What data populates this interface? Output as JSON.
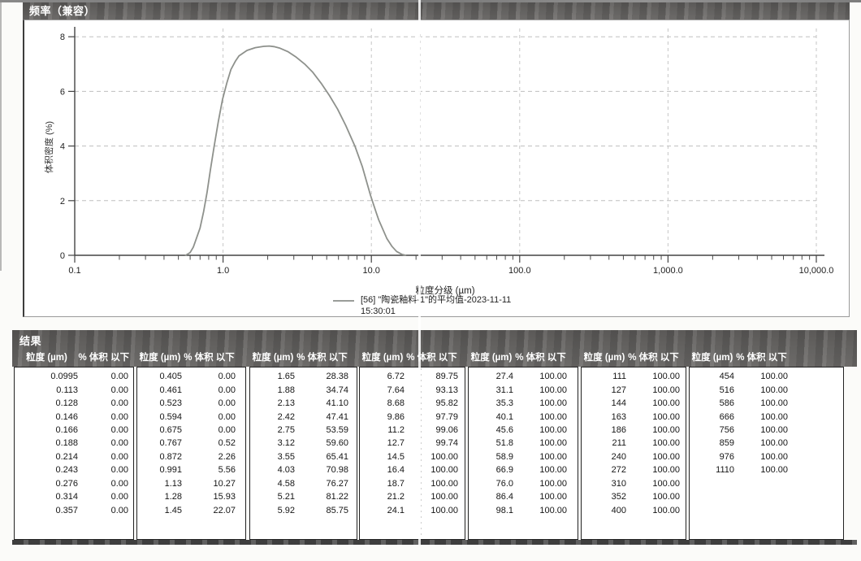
{
  "frequency_section": {
    "title": "频率（兼容）"
  },
  "chart_data": {
    "type": "line",
    "title": "频率（兼容）",
    "xlabel": "粒度分级 (µm)",
    "ylabel": "体积密度 (%)",
    "xscale": "log",
    "xlim": [
      0.1,
      10000
    ],
    "ylim": [
      0,
      8
    ],
    "xtick_values": [
      0.1,
      1,
      10,
      100,
      1000,
      10000
    ],
    "xtick_labels": [
      "0.1",
      "1.0",
      "10.0",
      "100.0",
      "1,000.0",
      "10,000.0"
    ],
    "ytick_values": [
      0,
      2,
      4,
      6,
      8
    ],
    "grid": true,
    "legend_position": "bottom",
    "series": [
      {
        "name": "[56] \"陶瓷釉料-1\"的平均值-2023-11-11",
        "time": "15:30:01",
        "color": "#8e918c",
        "points": [
          [
            0.56,
            0
          ],
          [
            0.6,
            0.1
          ],
          [
            0.63,
            0.3
          ],
          [
            0.66,
            0.6
          ],
          [
            0.7,
            1.0
          ],
          [
            0.74,
            1.6
          ],
          [
            0.78,
            2.3
          ],
          [
            0.82,
            3.1
          ],
          [
            0.872,
            4.0
          ],
          [
            0.93,
            4.9
          ],
          [
            0.991,
            5.7
          ],
          [
            1.06,
            6.3
          ],
          [
            1.13,
            6.8
          ],
          [
            1.21,
            7.1
          ],
          [
            1.28,
            7.3
          ],
          [
            1.45,
            7.5
          ],
          [
            1.65,
            7.6
          ],
          [
            1.88,
            7.65
          ],
          [
            2.05,
            7.66
          ],
          [
            2.2,
            7.64
          ],
          [
            2.42,
            7.58
          ],
          [
            2.75,
            7.45
          ],
          [
            3.12,
            7.25
          ],
          [
            3.55,
            7.0
          ],
          [
            4.03,
            6.7
          ],
          [
            4.58,
            6.3
          ],
          [
            5.21,
            5.85
          ],
          [
            5.92,
            5.35
          ],
          [
            6.72,
            4.75
          ],
          [
            7.74,
            4.0
          ],
          [
            8.68,
            3.25
          ],
          [
            9.86,
            2.2
          ],
          [
            10.8,
            1.55
          ],
          [
            11.2,
            1.3
          ],
          [
            12.7,
            0.62
          ],
          [
            13.8,
            0.32
          ],
          [
            14.8,
            0.14
          ],
          [
            16.0,
            0.04
          ],
          [
            17.0,
            0
          ]
        ]
      }
    ]
  },
  "results": {
    "title": "结果",
    "col_headers": {
      "size": "粒度 (µm)",
      "pct": "% 体积 以下"
    },
    "groups": [
      {
        "rows": [
          [
            "0.0995",
            "0.00"
          ],
          [
            "0.113",
            "0.00"
          ],
          [
            "0.128",
            "0.00"
          ],
          [
            "0.146",
            "0.00"
          ],
          [
            "0.166",
            "0.00"
          ],
          [
            "0.188",
            "0.00"
          ],
          [
            "0.214",
            "0.00"
          ],
          [
            "0.243",
            "0.00"
          ],
          [
            "0.276",
            "0.00"
          ],
          [
            "0.314",
            "0.00"
          ],
          [
            "0.357",
            "0.00"
          ]
        ]
      },
      {
        "rows": [
          [
            "0.405",
            "0.00"
          ],
          [
            "0.461",
            "0.00"
          ],
          [
            "0.523",
            "0.00"
          ],
          [
            "0.594",
            "0.00"
          ],
          [
            "0.675",
            "0.00"
          ],
          [
            "0.767",
            "0.52"
          ],
          [
            "0.872",
            "2.26"
          ],
          [
            "0.991",
            "5.56"
          ],
          [
            "1.13",
            "10.27"
          ],
          [
            "1.28",
            "15.93"
          ],
          [
            "1.45",
            "22.07"
          ]
        ]
      },
      {
        "rows": [
          [
            "1.65",
            "28.38"
          ],
          [
            "1.88",
            "34.74"
          ],
          [
            "2.13",
            "41.10"
          ],
          [
            "2.42",
            "47.41"
          ],
          [
            "2.75",
            "53.59"
          ],
          [
            "3.12",
            "59.60"
          ],
          [
            "3.55",
            "65.41"
          ],
          [
            "4.03",
            "70.98"
          ],
          [
            "4.58",
            "76.27"
          ],
          [
            "5.21",
            "81.22"
          ],
          [
            "5.92",
            "85.75"
          ]
        ]
      },
      {
        "rows": [
          [
            "6.72",
            "89.75"
          ],
          [
            "7.64",
            "93.13"
          ],
          [
            "8.68",
            "95.82"
          ],
          [
            "9.86",
            "97.79"
          ],
          [
            "11.2",
            "99.06"
          ],
          [
            "12.7",
            "99.74"
          ],
          [
            "14.5",
            "100.00"
          ],
          [
            "16.4",
            "100.00"
          ],
          [
            "18.7",
            "100.00"
          ],
          [
            "21.2",
            "100.00"
          ],
          [
            "24.1",
            "100.00"
          ]
        ]
      },
      {
        "rows": [
          [
            "27.4",
            "100.00"
          ],
          [
            "31.1",
            "100.00"
          ],
          [
            "35.3",
            "100.00"
          ],
          [
            "40.1",
            "100.00"
          ],
          [
            "45.6",
            "100.00"
          ],
          [
            "51.8",
            "100.00"
          ],
          [
            "58.9",
            "100.00"
          ],
          [
            "66.9",
            "100.00"
          ],
          [
            "76.0",
            "100.00"
          ],
          [
            "86.4",
            "100.00"
          ],
          [
            "98.1",
            "100.00"
          ]
        ]
      },
      {
        "rows": [
          [
            "111",
            "100.00"
          ],
          [
            "127",
            "100.00"
          ],
          [
            "144",
            "100.00"
          ],
          [
            "163",
            "100.00"
          ],
          [
            "186",
            "100.00"
          ],
          [
            "211",
            "100.00"
          ],
          [
            "240",
            "100.00"
          ],
          [
            "272",
            "100.00"
          ],
          [
            "310",
            "100.00"
          ],
          [
            "352",
            "100.00"
          ],
          [
            "400",
            "100.00"
          ]
        ]
      },
      {
        "rows": [
          [
            "454",
            "100.00"
          ],
          [
            "516",
            "100.00"
          ],
          [
            "586",
            "100.00"
          ],
          [
            "666",
            "100.00"
          ],
          [
            "756",
            "100.00"
          ],
          [
            "859",
            "100.00"
          ],
          [
            "976",
            "100.00"
          ],
          [
            "1110",
            "100.00"
          ]
        ]
      }
    ]
  }
}
